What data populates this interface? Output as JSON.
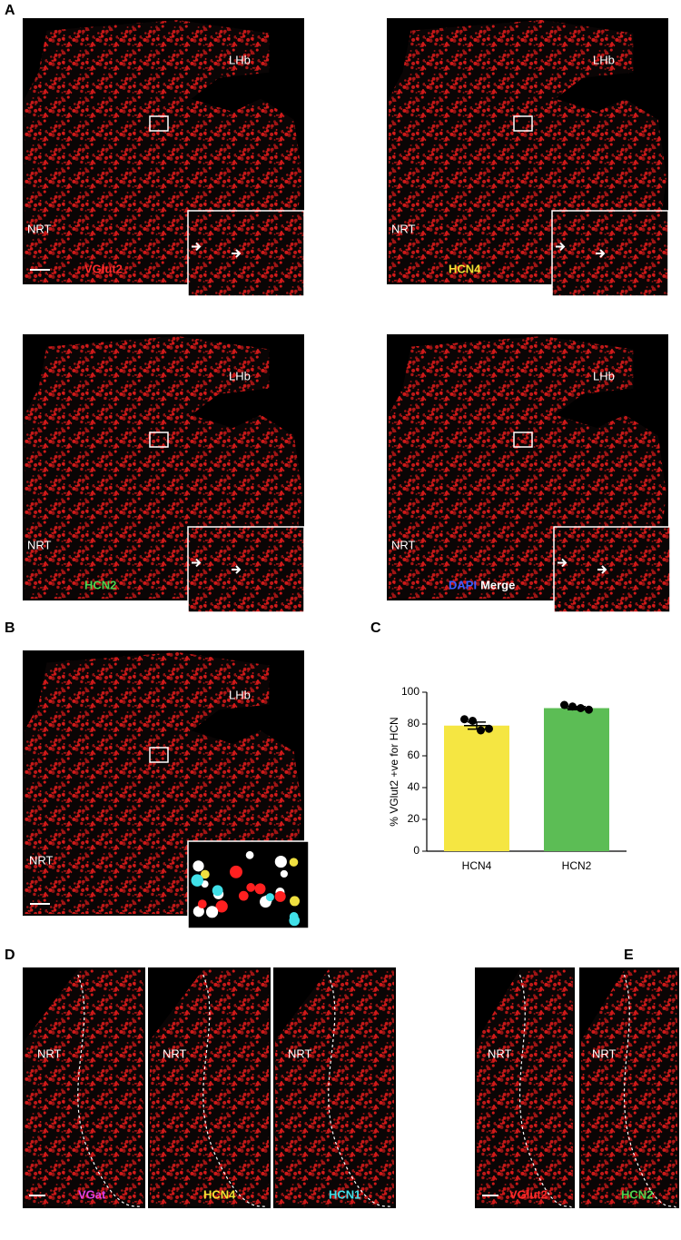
{
  "panel_labels": [
    "A",
    "B",
    "C",
    "D",
    "E"
  ],
  "panel_a": [
    {
      "regions": [
        "LHb",
        "NRT"
      ],
      "stain": [
        {
          "text": "VGlut2",
          "color": "#ff2a2a"
        }
      ],
      "tint": "#d81a1a"
    },
    {
      "regions": [
        "LHb",
        "NRT"
      ],
      "stain": [
        {
          "text": "HCN4",
          "color": "#f2e232"
        }
      ],
      "tint": "#a8a024"
    },
    {
      "regions": [
        "LHb",
        "NRT"
      ],
      "stain": [
        {
          "text": "HCN2",
          "color": "#4ed24e"
        }
      ],
      "tint": "#2c9a2c"
    },
    {
      "regions": [
        "LHb",
        "NRT"
      ],
      "stain": [
        {
          "text": "DAPI",
          "color": "#3a5cff"
        },
        {
          "text": "Merge",
          "color": "#ffffff"
        }
      ],
      "tint": "#c47a5a"
    }
  ],
  "panel_b": {
    "regions": [
      "LHb",
      "NRT"
    ]
  },
  "panel_d": [
    {
      "region": "NRT",
      "stain": {
        "text": "VGat",
        "color": "#e040e0"
      },
      "tint": "#a020a8"
    },
    {
      "region": "NRT",
      "stain": {
        "text": "HCN4",
        "color": "#f2e232"
      },
      "tint": "#6e6a1c"
    },
    {
      "region": "NRT",
      "stain": {
        "text": "HCN1",
        "color": "#40e0e8"
      },
      "tint": "#1e6a70"
    }
  ],
  "panel_e": [
    {
      "region": "NRT",
      "stain": {
        "text": "VGlut2",
        "color": "#ff2a2a"
      },
      "tint": "#b01818"
    },
    {
      "region": "NRT",
      "stain": {
        "text": "HCN2",
        "color": "#4ed24e"
      },
      "tint": "#289228"
    }
  ],
  "chart_data": {
    "type": "bar",
    "y_label": "% VGlut2 +ve for HCN",
    "categories": [
      "HCN4",
      "HCN2"
    ],
    "values": [
      79,
      90
    ],
    "errors": [
      2.2,
      1
    ],
    "points": [
      [
        83,
        82,
        76,
        77
      ],
      [
        92,
        91,
        90,
        89
      ]
    ],
    "colors": [
      "#f5e642",
      "#5cbd55"
    ],
    "ylim": [
      0,
      100
    ],
    "yticks": [
      0,
      20,
      40,
      60,
      80,
      100
    ]
  }
}
